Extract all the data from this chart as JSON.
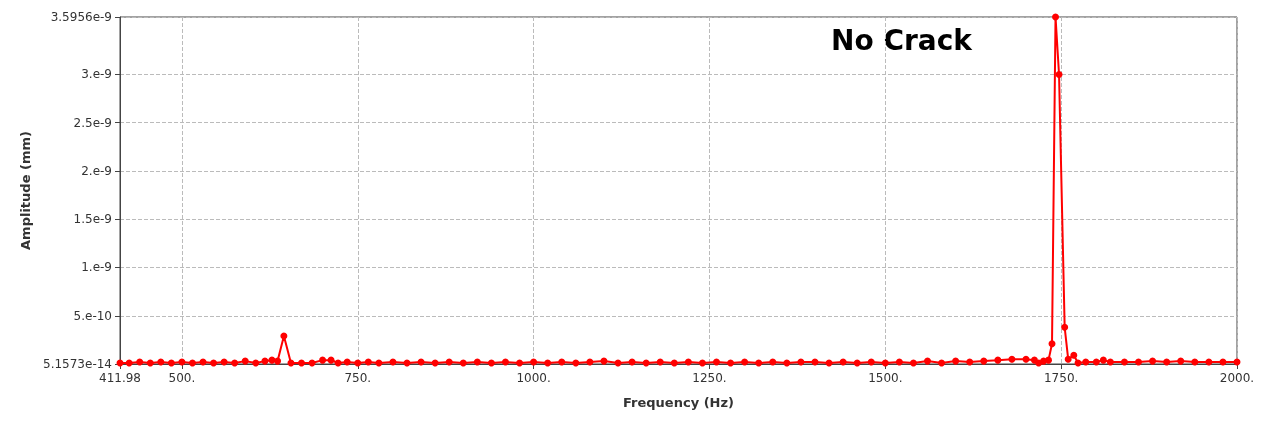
{
  "chart_data": {
    "type": "line",
    "xlabel": "Frequency (Hz)",
    "ylabel": "Amplitude (mm)",
    "annotations": [
      "No Crack"
    ],
    "xlim": [
      411.98,
      2000
    ],
    "xticks": [
      411.98,
      {
        "value": 500,
        "label": "500."
      },
      {
        "value": 750,
        "label": "750."
      },
      {
        "value": 1000,
        "label": "1000."
      },
      {
        "value": 1250,
        "label": "1250."
      },
      {
        "value": 1500,
        "label": "1500."
      },
      {
        "value": 1750,
        "label": "1750."
      },
      {
        "value": 2000,
        "label": "2000."
      }
    ],
    "ylim": [
      5.1573e-14,
      3.5956e-09
    ],
    "yticks": [
      5.1573e-14,
      {
        "value": 5e-10,
        "label": "5.e-10"
      },
      {
        "value": 1e-09,
        "label": "1.e-9"
      },
      {
        "value": 1.5e-09,
        "label": "1.5e-9"
      },
      {
        "value": 2e-09,
        "label": "2.e-9"
      },
      {
        "value": 2.5e-09,
        "label": "2.5e-9"
      },
      {
        "value": 3e-09,
        "label": "3.e-9"
      },
      {
        "value": 3.5956e-09,
        "label": "3.5956e-9"
      }
    ],
    "grid": true,
    "marker": "circle",
    "x": [
      411.98,
      425,
      440,
      455,
      470,
      485,
      500,
      515,
      530,
      545,
      560,
      575,
      590,
      605,
      618,
      628,
      636,
      645,
      655,
      670,
      685,
      700,
      712,
      722,
      735,
      750,
      765,
      780,
      800,
      820,
      840,
      860,
      880,
      900,
      920,
      940,
      960,
      980,
      1000,
      1020,
      1040,
      1060,
      1080,
      1100,
      1120,
      1140,
      1160,
      1180,
      1200,
      1220,
      1240,
      1260,
      1280,
      1300,
      1320,
      1340,
      1360,
      1380,
      1400,
      1420,
      1440,
      1460,
      1480,
      1500,
      1520,
      1540,
      1560,
      1580,
      1600,
      1620,
      1640,
      1660,
      1680,
      1700,
      1712,
      1718,
      1725,
      1732,
      1737,
      1742,
      1747,
      1755,
      1760,
      1768,
      1774,
      1785,
      1800,
      1810,
      1820,
      1840,
      1860,
      1880,
      1900,
      1920,
      1940,
      1960,
      1980,
      2000
    ],
    "series": [
      {
        "color": "#ff0000",
        "values": [
          1e-11,
          1e-11,
          2e-11,
          1e-11,
          2e-11,
          1e-11,
          2e-11,
          1e-11,
          2e-11,
          1e-11,
          2e-11,
          1e-11,
          3e-11,
          1e-11,
          3e-11,
          4e-11,
          3e-11,
          2.9e-10,
          1e-11,
          1e-11,
          1e-11,
          4e-11,
          4e-11,
          1e-11,
          2e-11,
          1e-11,
          2e-11,
          1e-11,
          2e-11,
          1e-11,
          2e-11,
          1e-11,
          2e-11,
          1e-11,
          2e-11,
          1e-11,
          2e-11,
          1e-11,
          2e-11,
          1e-11,
          2e-11,
          1e-11,
          2e-11,
          3e-11,
          1e-11,
          2e-11,
          1e-11,
          2e-11,
          1e-11,
          2e-11,
          1e-11,
          2e-11,
          1e-11,
          2e-11,
          1e-11,
          2e-11,
          1e-11,
          2e-11,
          2e-11,
          1e-11,
          2e-11,
          1e-11,
          2e-11,
          1e-11,
          2e-11,
          1e-11,
          3e-11,
          1e-11,
          3e-11,
          2e-11,
          3e-11,
          4e-11,
          5e-11,
          5e-11,
          4e-11,
          1e-11,
          3e-11,
          4e-11,
          2.1e-10,
          3.5956e-09,
          3e-09,
          3.8e-10,
          5e-11,
          9e-11,
          1e-11,
          2e-11,
          2e-11,
          4e-11,
          2e-11,
          2e-11,
          2e-11,
          3e-11,
          2e-11,
          3e-11,
          2e-11,
          2e-11,
          2e-11,
          2e-11
        ]
      }
    ]
  }
}
